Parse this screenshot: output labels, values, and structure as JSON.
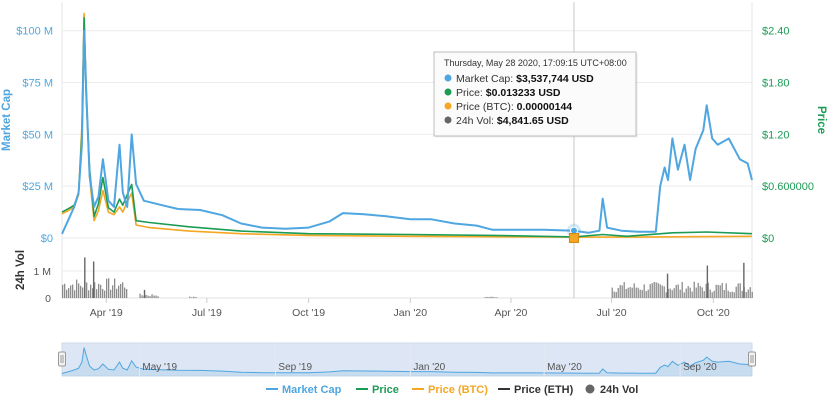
{
  "chart_data": {
    "type": "line",
    "x_range": [
      "2019-02-20",
      "2020-11-05"
    ],
    "x_ticks": [
      {
        "label": "Apr '19",
        "date": "2019-04-01"
      },
      {
        "label": "Jul '19",
        "date": "2019-07-01"
      },
      {
        "label": "Oct '19",
        "date": "2019-10-01"
      },
      {
        "label": "Jan '20",
        "date": "2020-01-01"
      },
      {
        "label": "Apr '20",
        "date": "2020-04-01"
      },
      {
        "label": "Jul '20",
        "date": "2020-07-01"
      },
      {
        "label": "Oct '20",
        "date": "2020-10-01"
      }
    ],
    "y_left": {
      "title": "Market Cap",
      "range": [
        0,
        110000000
      ],
      "ticks": [
        {
          "label": "$0",
          "value": 0
        },
        {
          "label": "$25 M",
          "value": 25000000
        },
        {
          "label": "$50 M",
          "value": 50000000
        },
        {
          "label": "$75 M",
          "value": 75000000
        },
        {
          "label": "$100 M",
          "value": 100000000
        }
      ]
    },
    "y_right": {
      "title": "Price",
      "range": [
        0,
        2.64
      ],
      "ticks": [
        {
          "label": "$0",
          "value": 0
        },
        {
          "label": "$0.600000",
          "value": 0.6
        },
        {
          "label": "$1.20",
          "value": 1.2
        },
        {
          "label": "$1.80",
          "value": 1.8
        },
        {
          "label": "$2.40",
          "value": 2.4
        }
      ]
    },
    "y_volume": {
      "title": "24h Vol",
      "range": [
        0,
        1700000
      ],
      "ticks": [
        {
          "label": "0",
          "value": 0
        },
        {
          "label": "1 M",
          "value": 1000000
        }
      ]
    },
    "series": [
      {
        "name": "Market Cap",
        "color": "#4fa6e0",
        "axis": "left",
        "points": [
          [
            "2019-02-20",
            2000000
          ],
          [
            "2019-02-26",
            9000000
          ],
          [
            "2019-03-03",
            15000000
          ],
          [
            "2019-03-07",
            22000000
          ],
          [
            "2019-03-10",
            45000000
          ],
          [
            "2019-03-12",
            100000000
          ],
          [
            "2019-03-14",
            70000000
          ],
          [
            "2019-03-17",
            30000000
          ],
          [
            "2019-03-21",
            15000000
          ],
          [
            "2019-03-25",
            20000000
          ],
          [
            "2019-03-29",
            38000000
          ],
          [
            "2019-04-03",
            18000000
          ],
          [
            "2019-04-08",
            15000000
          ],
          [
            "2019-04-13",
            45000000
          ],
          [
            "2019-04-16",
            22000000
          ],
          [
            "2019-04-20",
            15000000
          ],
          [
            "2019-04-24",
            50000000
          ],
          [
            "2019-04-28",
            26000000
          ],
          [
            "2019-05-05",
            18000000
          ],
          [
            "2019-05-20",
            16000000
          ],
          [
            "2019-06-05",
            14000000
          ],
          [
            "2019-06-25",
            13500000
          ],
          [
            "2019-07-15",
            11000000
          ],
          [
            "2019-08-01",
            7000000
          ],
          [
            "2019-08-20",
            5000000
          ],
          [
            "2019-09-10",
            4500000
          ],
          [
            "2019-10-01",
            5000000
          ],
          [
            "2019-10-20",
            8000000
          ],
          [
            "2019-11-01",
            12000000
          ],
          [
            "2019-11-20",
            11500000
          ],
          [
            "2019-12-10",
            10500000
          ],
          [
            "2020-01-01",
            9000000
          ],
          [
            "2020-01-20",
            9000000
          ],
          [
            "2020-02-10",
            7000000
          ],
          [
            "2020-03-01",
            6000000
          ],
          [
            "2020-03-15",
            4000000
          ],
          [
            "2020-04-01",
            4000000
          ],
          [
            "2020-05-01",
            4000000
          ],
          [
            "2020-05-28",
            3537744
          ],
          [
            "2020-06-10",
            2500000
          ],
          [
            "2020-06-20",
            3500000
          ],
          [
            "2020-06-23",
            19000000
          ],
          [
            "2020-06-27",
            5000000
          ],
          [
            "2020-07-10",
            3500000
          ],
          [
            "2020-07-25",
            3000000
          ],
          [
            "2020-08-10",
            3000000
          ],
          [
            "2020-08-14",
            25000000
          ],
          [
            "2020-08-18",
            34000000
          ],
          [
            "2020-08-21",
            28000000
          ],
          [
            "2020-08-25",
            48000000
          ],
          [
            "2020-08-30",
            33000000
          ],
          [
            "2020-09-05",
            45000000
          ],
          [
            "2020-09-10",
            28000000
          ],
          [
            "2020-09-15",
            43000000
          ],
          [
            "2020-09-22",
            52000000
          ],
          [
            "2020-09-25",
            64000000
          ],
          [
            "2020-09-30",
            48000000
          ],
          [
            "2020-10-05",
            45000000
          ],
          [
            "2020-10-15",
            48000000
          ],
          [
            "2020-10-25",
            38000000
          ],
          [
            "2020-11-01",
            36000000
          ],
          [
            "2020-11-05",
            28000000
          ]
        ]
      },
      {
        "name": "Price",
        "color": "#1b9c55",
        "axis": "right",
        "points": [
          [
            "2019-02-20",
            0.3
          ],
          [
            "2019-02-26",
            0.34
          ],
          [
            "2019-03-03",
            0.38
          ],
          [
            "2019-03-07",
            0.52
          ],
          [
            "2019-03-10",
            1.2
          ],
          [
            "2019-03-12",
            2.55
          ],
          [
            "2019-03-14",
            1.6
          ],
          [
            "2019-03-17",
            0.8
          ],
          [
            "2019-03-21",
            0.25
          ],
          [
            "2019-03-25",
            0.4
          ],
          [
            "2019-03-29",
            0.7
          ],
          [
            "2019-04-03",
            0.35
          ],
          [
            "2019-04-08",
            0.3
          ],
          [
            "2019-04-13",
            0.45
          ],
          [
            "2019-04-16",
            0.38
          ],
          [
            "2019-04-20",
            0.5
          ],
          [
            "2019-04-24",
            0.62
          ],
          [
            "2019-04-28",
            0.2
          ],
          [
            "2019-05-10",
            0.18
          ],
          [
            "2019-06-15",
            0.13
          ],
          [
            "2019-08-01",
            0.08
          ],
          [
            "2019-10-01",
            0.05
          ],
          [
            "2020-01-01",
            0.04
          ],
          [
            "2020-03-15",
            0.03
          ],
          [
            "2020-05-28",
            0.013233
          ],
          [
            "2020-06-23",
            0.04
          ],
          [
            "2020-07-15",
            0.02
          ],
          [
            "2020-08-25",
            0.06
          ],
          [
            "2020-09-25",
            0.07
          ],
          [
            "2020-11-05",
            0.05
          ]
        ]
      },
      {
        "name": "Price (BTC)",
        "color": "#f5a623",
        "axis": "right",
        "points": [
          [
            "2019-02-20",
            0.28
          ],
          [
            "2019-02-26",
            0.32
          ],
          [
            "2019-03-03",
            0.36
          ],
          [
            "2019-03-07",
            0.5
          ],
          [
            "2019-03-10",
            1.3
          ],
          [
            "2019-03-12",
            2.6
          ],
          [
            "2019-03-14",
            1.7
          ],
          [
            "2019-03-17",
            0.7
          ],
          [
            "2019-03-21",
            0.2
          ],
          [
            "2019-03-25",
            0.32
          ],
          [
            "2019-03-29",
            0.55
          ],
          [
            "2019-04-03",
            0.3
          ],
          [
            "2019-04-08",
            0.27
          ],
          [
            "2019-04-13",
            0.36
          ],
          [
            "2019-04-16",
            0.3
          ],
          [
            "2019-04-20",
            0.42
          ],
          [
            "2019-04-24",
            0.52
          ],
          [
            "2019-04-28",
            0.15
          ],
          [
            "2019-05-10",
            0.12
          ],
          [
            "2019-06-15",
            0.08
          ],
          [
            "2019-08-01",
            0.05
          ],
          [
            "2019-10-01",
            0.03
          ],
          [
            "2020-01-01",
            0.02
          ],
          [
            "2020-05-28",
            0.01
          ],
          [
            "2020-07-15",
            0.01
          ],
          [
            "2020-11-05",
            0.02
          ]
        ]
      }
    ],
    "volume": {
      "name": "24h Vol",
      "color": "#666666",
      "segments": [
        {
          "from": "2019-02-20",
          "to": "2019-04-20",
          "level": 550000,
          "spikes": [
            [
              "2019-03-12",
              1500000
            ],
            [
              "2019-03-20",
              1350000
            ]
          ]
        },
        {
          "from": "2019-05-01",
          "to": "2019-05-18",
          "level": 120000,
          "spikes": [
            [
              "2019-05-05",
              300000
            ]
          ]
        },
        {
          "from": "2019-06-15",
          "to": "2019-06-22",
          "level": 40000,
          "spikes": []
        },
        {
          "from": "2020-03-08",
          "to": "2020-03-20",
          "level": 40000,
          "spikes": []
        },
        {
          "from": "2020-07-01",
          "to": "2020-11-05",
          "level": 450000,
          "spikes": [
            [
              "2020-09-25",
              1200000
            ],
            [
              "2020-10-28",
              1300000
            ],
            [
              "2020-08-20",
              900000
            ]
          ]
        }
      ]
    },
    "crosshair_date": "2020-05-28",
    "tooltip": {
      "date": "Thursday, May 28 2020, 17:09:15 UTC+08:00",
      "rows": [
        {
          "label": "Market Cap:",
          "value": "$3,537,744 USD",
          "color": "#4fa6e0"
        },
        {
          "label": "Price:",
          "value": "$0.013233 USD",
          "color": "#1b9c55"
        },
        {
          "label": "Price (BTC):",
          "value": "0.00000144",
          "color": "#f5a623"
        },
        {
          "label": "24h Vol:",
          "value": "$4,841.65 USD",
          "color": "#666666"
        }
      ]
    },
    "navigator": {
      "ticks": [
        {
          "label": "May '19",
          "date": "2019-05-01"
        },
        {
          "label": "Sep '19",
          "date": "2019-09-01"
        },
        {
          "label": "Jan '20",
          "date": "2020-01-01"
        },
        {
          "label": "May '20",
          "date": "2020-05-01"
        },
        {
          "label": "Sep '20",
          "date": "2020-09-01"
        }
      ]
    },
    "legend": [
      {
        "label": "Market Cap",
        "color": "#4fa6e0",
        "marker": "line"
      },
      {
        "label": "Price",
        "color": "#1b9c55",
        "marker": "line"
      },
      {
        "label": "Price (BTC)",
        "color": "#f5a623",
        "marker": "line"
      },
      {
        "label": "Price (ETH)",
        "color": "#333333",
        "marker": "line"
      },
      {
        "label": "24h Vol",
        "color": "#666666",
        "marker": "dot"
      }
    ]
  }
}
